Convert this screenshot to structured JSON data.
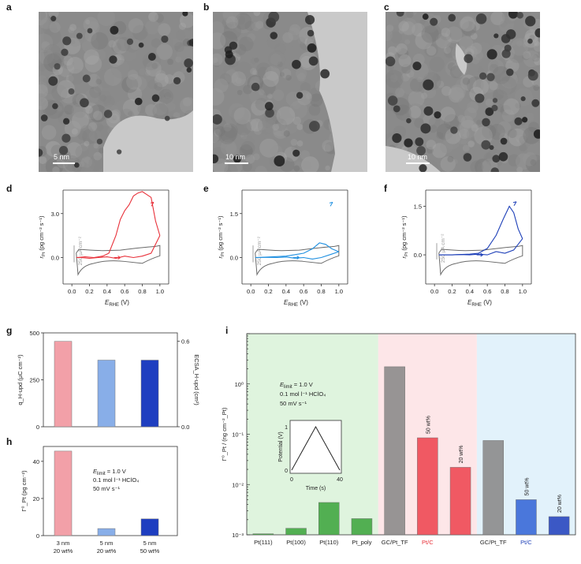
{
  "figure": {
    "tem_panels": [
      {
        "letter": "a",
        "scale_label": "5 nm"
      },
      {
        "letter": "b",
        "scale_label": "10 nm"
      },
      {
        "letter": "c",
        "scale_label": "10 nm"
      }
    ]
  },
  "chart_data": [
    {
      "panel": "d",
      "type": "line",
      "xlabel_main": "E",
      "xlabel_sub": "RHE",
      "xlabel_unit": " (V)",
      "ylabel": "r_Pt (pg cm⁻² s⁻¹)",
      "x_ticks": [
        "0.0",
        "0.2",
        "0.4",
        "0.6",
        "0.8",
        "1.0"
      ],
      "y_ticks": [
        "0.0",
        "3.0"
      ],
      "ylim": [
        -1.8,
        4.6
      ],
      "xlim": [
        -0.1,
        1.1
      ],
      "current_scale_label": "250 µA cm⁻²",
      "color": "#e8313a",
      "dissolution_forward": [
        [
          0.05,
          0
        ],
        [
          0.15,
          0.05
        ],
        [
          0.25,
          0
        ],
        [
          0.35,
          0.1
        ],
        [
          0.42,
          0.3
        ],
        [
          0.5,
          1.5
        ],
        [
          0.55,
          2.6
        ],
        [
          0.6,
          3.2
        ],
        [
          0.65,
          3.6
        ],
        [
          0.7,
          4.2
        ],
        [
          0.75,
          4.4
        ],
        [
          0.8,
          4.5
        ],
        [
          0.85,
          4.3
        ],
        [
          0.9,
          4.1
        ],
        [
          0.95,
          2.5
        ],
        [
          1.0,
          1.5
        ]
      ],
      "dissolution_backward": [
        [
          1.0,
          1.5
        ],
        [
          0.9,
          0.3
        ],
        [
          0.8,
          0.1
        ],
        [
          0.7,
          0.0
        ],
        [
          0.6,
          0.1
        ],
        [
          0.5,
          -0.05
        ],
        [
          0.4,
          0.05
        ],
        [
          0.3,
          0.0
        ],
        [
          0.2,
          -0.05
        ],
        [
          0.1,
          0.0
        ],
        [
          0.05,
          0
        ]
      ]
    },
    {
      "panel": "e",
      "type": "line",
      "xlabel_main": "E",
      "xlabel_sub": "RHE",
      "xlabel_unit": " (V)",
      "ylabel": "r_Pt (pg cm⁻² s⁻¹)",
      "x_ticks": [
        "0.0",
        "0.2",
        "0.4",
        "0.6",
        "0.8",
        "1.0"
      ],
      "y_ticks": [
        "0.0",
        "1.5"
      ],
      "ylim": [
        -0.9,
        2.3
      ],
      "xlim": [
        -0.1,
        1.1
      ],
      "current_scale_label": "250 µA cm⁻²",
      "color": "#1e8fe0",
      "dissolution_forward": [
        [
          0.05,
          0
        ],
        [
          0.2,
          0.02
        ],
        [
          0.4,
          0.05
        ],
        [
          0.6,
          0.15
        ],
        [
          0.7,
          0.3
        ],
        [
          0.78,
          0.5
        ],
        [
          0.85,
          0.45
        ],
        [
          0.92,
          0.3
        ],
        [
          1.0,
          0.2
        ]
      ],
      "dissolution_backward": [
        [
          1.0,
          0.2
        ],
        [
          0.9,
          0.1
        ],
        [
          0.8,
          0.0
        ],
        [
          0.7,
          -0.05
        ],
        [
          0.6,
          0.0
        ],
        [
          0.5,
          -0.02
        ],
        [
          0.4,
          0.02
        ],
        [
          0.3,
          0.0
        ],
        [
          0.2,
          0.01
        ],
        [
          0.05,
          0
        ]
      ]
    },
    {
      "panel": "f",
      "type": "line",
      "xlabel_main": "E",
      "xlabel_sub": "RHE",
      "xlabel_unit": " (V)",
      "ylabel": "r_Pt (pg cm⁻² s⁻¹)",
      "x_ticks": [
        "0.0",
        "0.2",
        "0.4",
        "0.6",
        "0.8",
        "1.0"
      ],
      "y_ticks": [
        "0.0",
        "1.5"
      ],
      "ylim": [
        -0.9,
        2.0
      ],
      "xlim": [
        -0.1,
        1.1
      ],
      "current_scale_label": "250 µA cm⁻²",
      "color": "#1d3fb8",
      "dissolution_forward": [
        [
          0.05,
          0
        ],
        [
          0.2,
          0.0
        ],
        [
          0.4,
          0.02
        ],
        [
          0.5,
          0.05
        ],
        [
          0.6,
          0.2
        ],
        [
          0.7,
          0.6
        ],
        [
          0.78,
          1.1
        ],
        [
          0.85,
          1.5
        ],
        [
          0.9,
          1.3
        ],
        [
          0.95,
          0.8
        ],
        [
          1.0,
          0.5
        ]
      ],
      "dissolution_backward": [
        [
          1.0,
          0.5
        ],
        [
          0.9,
          0.15
        ],
        [
          0.8,
          0.05
        ],
        [
          0.7,
          0.1
        ],
        [
          0.6,
          0.0
        ],
        [
          0.5,
          0.02
        ],
        [
          0.4,
          0.0
        ],
        [
          0.3,
          0.01
        ],
        [
          0.2,
          0.0
        ],
        [
          0.05,
          0
        ]
      ]
    },
    {
      "panel": "g",
      "type": "bar",
      "ylabel": "q_H-upd (µC cm⁻²)",
      "ylabel_right": "ECSA_H-upd (cm²)",
      "y_ticks": [
        "0",
        "250",
        "500"
      ],
      "y_ticks_right": [
        "0.0",
        "0.6"
      ],
      "ylim": [
        0,
        500
      ],
      "values": [
        455,
        355,
        355
      ],
      "colors": [
        "#f2a0a8",
        "#88aee8",
        "#1e3ec0"
      ]
    },
    {
      "panel": "h",
      "type": "bar",
      "ylabel": "Γ⁰_Pt (pg cm⁻²)",
      "y_ticks": [
        "0",
        "20",
        "40"
      ],
      "ylim": [
        0,
        48
      ],
      "values": [
        45.5,
        3.8,
        9
      ],
      "colors": [
        "#f2a0a8",
        "#88aee8",
        "#1e3ec0"
      ],
      "categories": [
        {
          "line1": "3 nm",
          "line2": "20 wt%"
        },
        {
          "line1": "5 nm",
          "line2": "20 wt%"
        },
        {
          "line1": "5 nm",
          "line2": "50 wt%"
        }
      ],
      "annotation": {
        "line1_main": "E",
        "line1_sub": "limit",
        "line1_rest": " = 1.0 V",
        "line2": "0.1 mol l⁻¹ HClO₄",
        "line3": "50 mV s⁻¹"
      }
    },
    {
      "panel": "i",
      "type": "bar",
      "ylabel": "Γ⁰_Pt / (ng cm⁻²_Pt)",
      "y_scale": "log",
      "y_ticks": [
        "10⁻³",
        "10⁻²",
        "10⁻¹",
        "10⁰"
      ],
      "ylim": [
        0.001,
        10
      ],
      "categories": [
        "Pt(111)",
        "Pt(100)",
        "Pt(110)",
        "Pt_poly",
        "GC/Pt_TF",
        "Pt/C",
        "",
        "GC/Pt_TF",
        "Pt/C",
        ""
      ],
      "category_label_colors": [
        "#222",
        "#222",
        "#222",
        "#222",
        "#222",
        "#e8313a",
        "#e8313a",
        "#222",
        "#1d3fb8",
        "#1d3fb8"
      ],
      "values": [
        0.00105,
        0.00135,
        0.0044,
        0.0021,
        2.2,
        0.085,
        0.022,
        0.075,
        0.005,
        0.0023
      ],
      "bar_labels": [
        "",
        "",
        "",
        "",
        "",
        "50 wt%",
        "20 wt%",
        "",
        "50 wt%",
        "20 wt%"
      ],
      "bar_colors": [
        "#43a843",
        "#43a843",
        "#43a843",
        "#43a843",
        "#8c8c8c",
        "#ef4a55",
        "#ef4a55",
        "#8c8c8c",
        "#3a6ad8",
        "#2a48c0"
      ],
      "regions": [
        "#dff4de",
        "#fde6e8",
        "#e2f2fb"
      ],
      "annotation": {
        "line1_main": "E",
        "line1_sub": "limit",
        "line1_rest": " = 1.0 V",
        "line2": "0.1 mol l⁻¹ HClO₄",
        "line3": "50 mV s⁻¹"
      },
      "inset": {
        "ylabel": "Potential (V)",
        "xlabel": "Time (s)",
        "y_ticks": [
          "0",
          "1"
        ],
        "x_ticks": [
          "0",
          "40"
        ],
        "points": [
          [
            0,
            0
          ],
          [
            20,
            1
          ],
          [
            40,
            0
          ]
        ]
      }
    }
  ]
}
